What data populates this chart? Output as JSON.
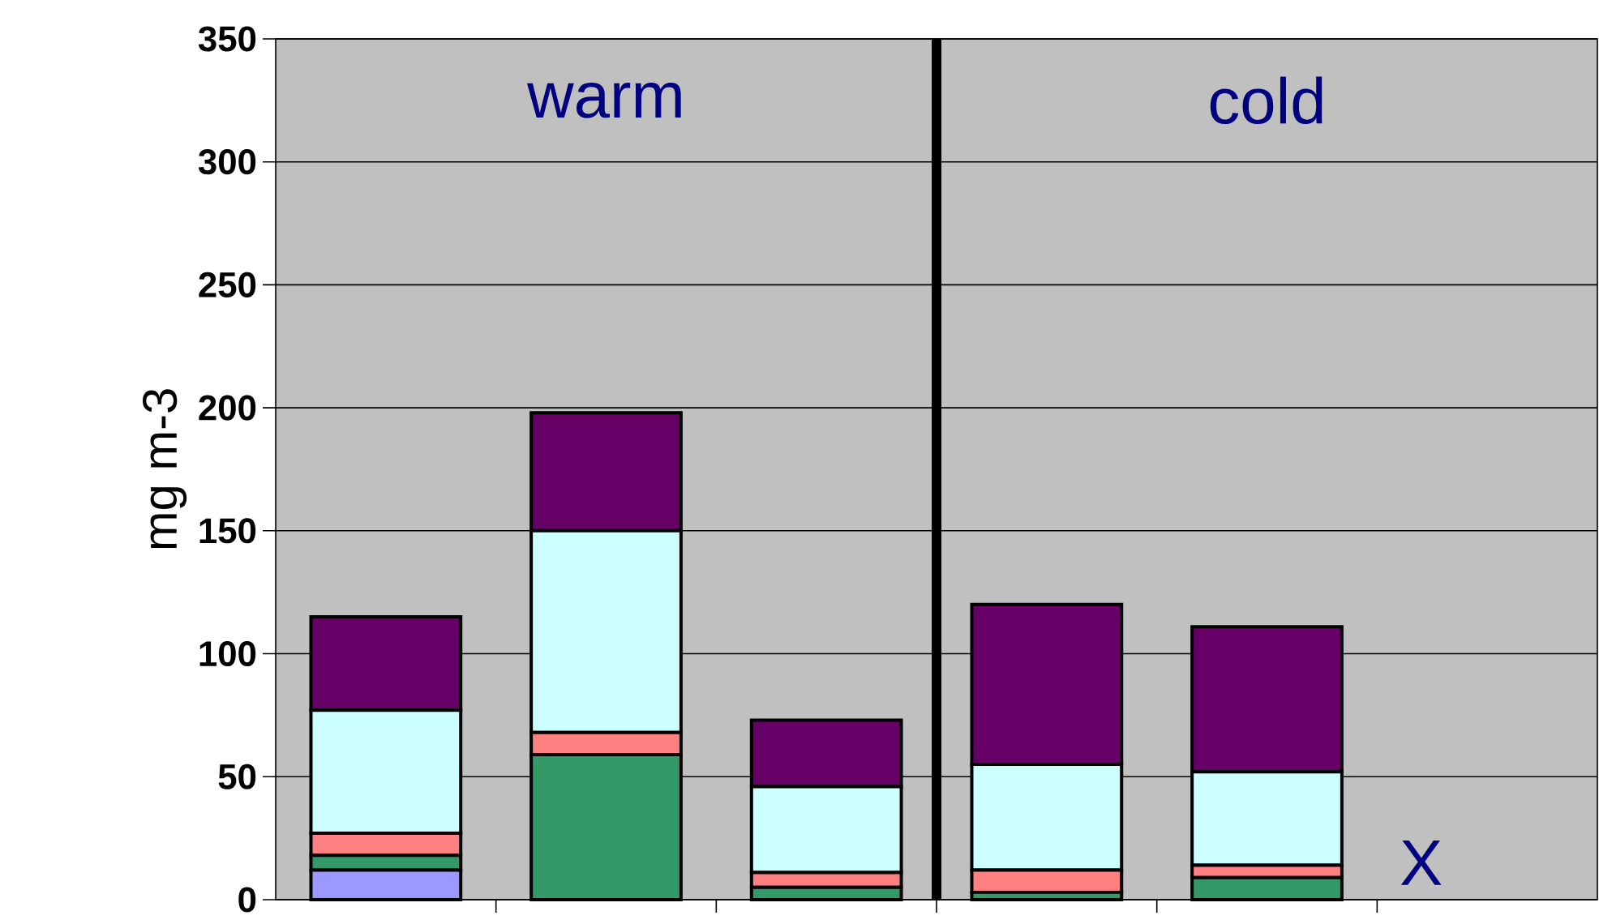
{
  "chart_data": {
    "type": "bar",
    "stacked": true,
    "ylabel": "mg m-3",
    "categories": [
      null,
      null,
      null,
      null,
      null,
      null
    ],
    "series": [
      {
        "color": "#9999ff",
        "values": [
          12,
          0,
          0,
          0,
          0,
          null
        ]
      },
      {
        "color": "#339966",
        "values": [
          6,
          59,
          5,
          3,
          9,
          null
        ]
      },
      {
        "color": "#ff8080",
        "values": [
          9,
          9,
          6,
          9,
          5,
          null
        ]
      },
      {
        "color": "#ccffff",
        "values": [
          50,
          82,
          35,
          43,
          38,
          null
        ]
      },
      {
        "color": "#660066",
        "values": [
          38,
          48,
          27,
          65,
          59,
          null
        ]
      }
    ],
    "ylim": [
      0,
      350
    ],
    "yticks": [
      0,
      50,
      100,
      150,
      200,
      250,
      300,
      350
    ],
    "grid": "y",
    "annotations": [
      "warm",
      "cold",
      "X"
    ]
  }
}
